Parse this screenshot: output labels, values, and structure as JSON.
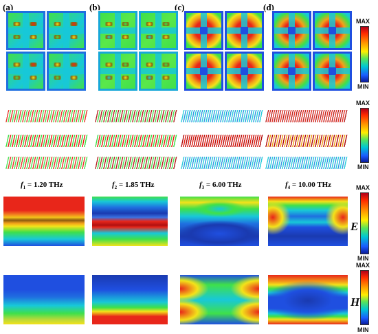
{
  "panels": [
    {
      "label": "(a)"
    },
    {
      "label": "(b)"
    },
    {
      "label": "(c)"
    },
    {
      "label": "(d)"
    }
  ],
  "frequencies": [
    {
      "symbol": "f",
      "sub": "1",
      "text": " = 1.20 THz"
    },
    {
      "symbol": "f",
      "sub": "2",
      "text": " = 1.85 THz"
    },
    {
      "symbol": "f",
      "sub": "3",
      "text": " = 6.00 THz"
    },
    {
      "symbol": "f",
      "sub": "4",
      "text": " = 10.00 THz"
    }
  ],
  "colorbars": [
    {
      "max": "MAX",
      "min": "MIN"
    },
    {
      "max": "MAX",
      "min": "MIN"
    },
    {
      "max": "MAX",
      "min": "MIN",
      "field": "E"
    },
    {
      "max": "MAX",
      "min": "MIN",
      "field": "H"
    }
  ],
  "colors": {
    "red": "#e8261a",
    "yellow": "#f3e21a",
    "green": "#3fe04a",
    "cyan": "#18c8d8",
    "blue": "#1f4fe0",
    "navy": "#1a2aa0"
  }
}
